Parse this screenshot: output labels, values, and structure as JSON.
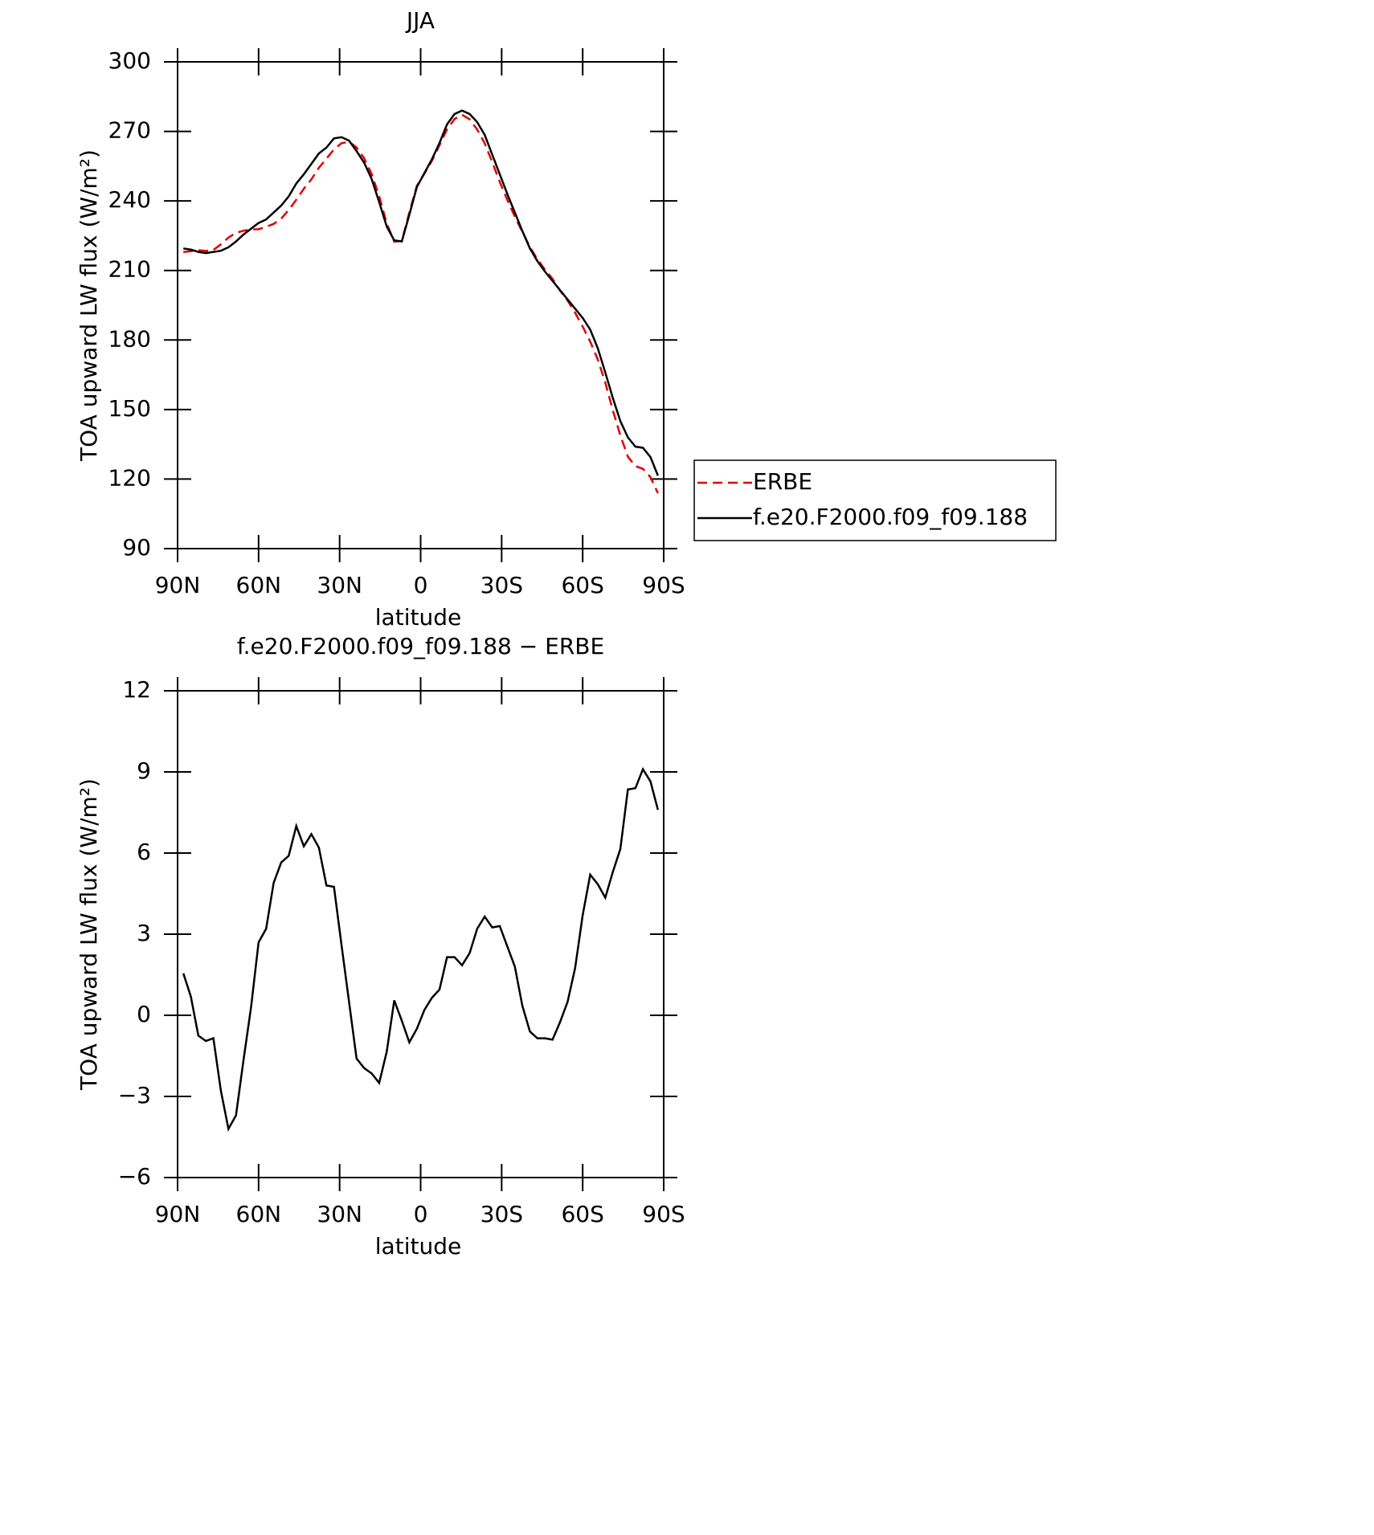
{
  "chart_data": [
    {
      "type": "line",
      "title": "JJA",
      "xlabel": "latitude",
      "ylabel": "TOA upward LW flux (W/m²)",
      "x": [
        87.86,
        85.1,
        82.31,
        79.53,
        76.74,
        73.95,
        71.16,
        68.37,
        65.58,
        62.79,
        60,
        57.21,
        54.42,
        51.63,
        48.84,
        46.04,
        43.25,
        40.46,
        37.67,
        34.88,
        32.09,
        29.3,
        26.51,
        23.72,
        20.93,
        18.14,
        15.35,
        12.56,
        9.77,
        6.98,
        4.19,
        1.4,
        -1.4,
        -4.19,
        -6.98,
        -9.77,
        -12.56,
        -15.35,
        -18.14,
        -20.93,
        -23.72,
        -26.51,
        -29.3,
        -32.09,
        -34.88,
        -37.67,
        -40.46,
        -43.25,
        -46.04,
        -48.84,
        -51.63,
        -54.42,
        -57.21,
        -60,
        -62.79,
        -65.58,
        -68.37,
        -71.16,
        -73.95,
        -76.74,
        -79.53,
        -82.31,
        -85.1,
        -87.86
      ],
      "xlim": [
        90,
        -90
      ],
      "xticks": [
        {
          "value": 90,
          "label": "90N"
        },
        {
          "value": 60,
          "label": "60N"
        },
        {
          "value": 30,
          "label": "30N"
        },
        0,
        {
          "value": -30,
          "label": "30S"
        },
        {
          "value": -60,
          "label": "60S"
        },
        {
          "value": -90,
          "label": "90S"
        }
      ],
      "ylim": [
        90,
        300
      ],
      "yticks": [
        90,
        120,
        150,
        180,
        210,
        240,
        270,
        300
      ],
      "legend": "right",
      "series": [
        {
          "name": "ERBE",
          "color": "#e00000",
          "linestyle": "dashed",
          "values": [
            217.95,
            218.3,
            218.75,
            218.45,
            218.85,
            221.3,
            224.2,
            226.2,
            227.15,
            227.7,
            227.8,
            228.8,
            230.1,
            232.35,
            236.1,
            240.5,
            245.25,
            249.3,
            254.3,
            258.2,
            262.25,
            264.9,
            265.5,
            263.1,
            258.45,
            251.65,
            242,
            230.35,
            222.45,
            222.7,
            235,
            246.5,
            251.8,
            257.35,
            264.05,
            270.85,
            275.35,
            277.15,
            275.2,
            270.8,
            264.85,
            256.75,
            248.2,
            240.45,
            233.2,
            226.65,
            220.1,
            214.85,
            210.35,
            206.4,
            201.25,
            197,
            191.75,
            185.8,
            179.3,
            171.65,
            161.65,
            149.7,
            138.85,
            129.65,
            125.6,
            124.4,
            120.85,
            113.9
          ]
        },
        {
          "name": "f.e20.F2000.f09_f09.188",
          "color": "#000000",
          "linestyle": "solid",
          "values": [
            219.5,
            219,
            218,
            217.5,
            218,
            218.5,
            220,
            222.5,
            225.5,
            228,
            230.5,
            232,
            235,
            238,
            242,
            247.5,
            251.5,
            256,
            260.5,
            263,
            267,
            267.5,
            266,
            261.5,
            256.5,
            249.5,
            239.5,
            229,
            223,
            222.5,
            234,
            246,
            252,
            258,
            265,
            273,
            277.5,
            279,
            277.5,
            274,
            268.5,
            260,
            251.5,
            243,
            235,
            227,
            219.5,
            214,
            209.5,
            205.5,
            201.5,
            197.5,
            193.5,
            189.5,
            184.5,
            176.5,
            166,
            155,
            145,
            138,
            134,
            133.5,
            129.5,
            121.5
          ]
        }
      ]
    },
    {
      "type": "line",
      "title": "f.e20.F2000.f09_f09.188 − ERBE",
      "xlabel": "latitude",
      "ylabel": "TOA upward LW flux (W/m²)",
      "x": [
        87.86,
        85.1,
        82.31,
        79.53,
        76.74,
        73.95,
        71.16,
        68.37,
        65.58,
        62.79,
        60,
        57.21,
        54.42,
        51.63,
        48.84,
        46.04,
        43.25,
        40.46,
        37.67,
        34.88,
        32.09,
        29.3,
        26.51,
        23.72,
        20.93,
        18.14,
        15.35,
        12.56,
        9.77,
        6.98,
        4.19,
        1.4,
        -1.4,
        -4.19,
        -6.98,
        -9.77,
        -12.56,
        -15.35,
        -18.14,
        -20.93,
        -23.72,
        -26.51,
        -29.3,
        -32.09,
        -34.88,
        -37.67,
        -40.46,
        -43.25,
        -46.04,
        -48.84,
        -51.63,
        -54.42,
        -57.21,
        -60,
        -62.79,
        -65.58,
        -68.37,
        -71.16,
        -73.95,
        -76.74,
        -79.53,
        -82.31,
        -85.1,
        -87.86
      ],
      "xlim": [
        90,
        -90
      ],
      "xticks": [
        {
          "value": 90,
          "label": "90N"
        },
        {
          "value": 60,
          "label": "60N"
        },
        {
          "value": 30,
          "label": "30N"
        },
        0,
        {
          "value": -30,
          "label": "30S"
        },
        {
          "value": -60,
          "label": "60S"
        },
        {
          "value": -90,
          "label": "90S"
        }
      ],
      "ylim": [
        -6,
        12
      ],
      "yticks": [
        {
          "value": -6,
          "label": "−6"
        },
        {
          "value": -3,
          "label": "−3"
        },
        0,
        3,
        6,
        9,
        12
      ],
      "series": [
        {
          "color": "#000000",
          "linestyle": "solid",
          "values": [
            1.55,
            0.7,
            -0.75,
            -0.95,
            -0.85,
            -2.8,
            -4.2,
            -3.7,
            -1.65,
            0.3,
            2.7,
            3.2,
            4.9,
            5.65,
            5.9,
            7,
            6.25,
            6.7,
            6.2,
            4.8,
            4.75,
            2.6,
            0.5,
            -1.6,
            -1.95,
            -2.15,
            -2.5,
            -1.35,
            0.55,
            -0.2,
            -1,
            -0.5,
            0.2,
            0.65,
            0.95,
            2.15,
            2.15,
            1.85,
            2.3,
            3.2,
            3.65,
            3.25,
            3.3,
            2.55,
            1.8,
            0.35,
            -0.6,
            -0.85,
            -0.85,
            -0.9,
            -0.25,
            0.5,
            1.75,
            3.7,
            5.2,
            4.85,
            4.35,
            5.3,
            6.15,
            8.35,
            8.4,
            9.1,
            8.65,
            7.6
          ]
        }
      ]
    }
  ]
}
